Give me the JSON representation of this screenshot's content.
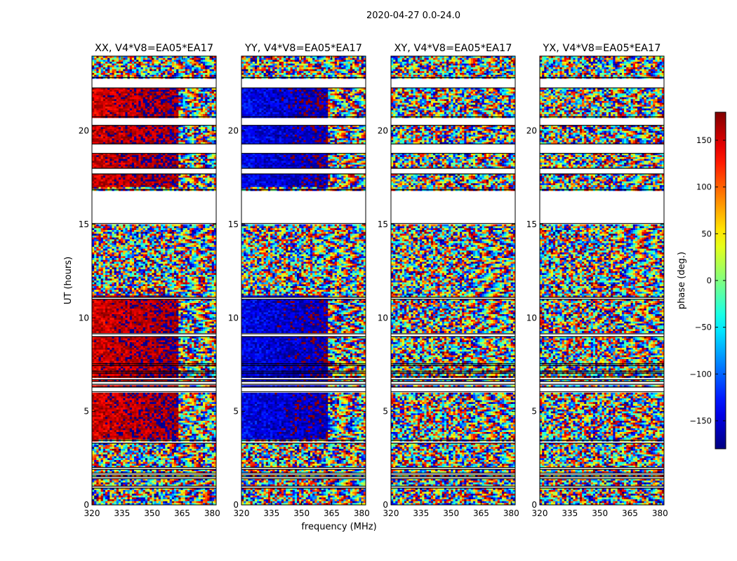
{
  "chart_data": {
    "type": "heatmap",
    "suptitle": "2020-04-27 0.0-24.0",
    "xlabel": "frequency (MHz)",
    "ylabel": "UT (hours)",
    "x_range": [
      320,
      382
    ],
    "y_range": [
      0,
      24
    ],
    "x_ticks": [
      320,
      335,
      350,
      365,
      380
    ],
    "y_ticks": [
      0,
      5,
      10,
      15,
      20
    ],
    "colormap": "jet",
    "colorbar": {
      "label": "phase (deg.)",
      "range": [
        -180,
        180
      ],
      "ticks": [
        150,
        100,
        50,
        0,
        -50,
        -100,
        -150
      ],
      "tick_labels": [
        "150",
        "100",
        "50",
        "0",
        "−50",
        "−100",
        "−150"
      ]
    },
    "flagged_ut_ranges": [
      [
        0.9,
        1.0
      ],
      [
        1.4,
        1.5
      ],
      [
        1.6,
        1.7
      ],
      [
        1.9,
        2.0
      ],
      [
        3.3,
        3.45
      ],
      [
        6.05,
        6.3
      ],
      [
        6.45,
        6.6
      ],
      [
        6.7,
        6.85
      ],
      [
        7.05,
        7.15
      ],
      [
        7.45,
        7.55
      ],
      [
        9.0,
        9.15
      ],
      [
        11.0,
        11.1
      ],
      [
        15.05,
        16.85
      ],
      [
        17.7,
        18.0
      ],
      [
        18.8,
        19.3
      ],
      [
        20.3,
        20.75
      ],
      [
        22.3,
        22.85
      ]
    ],
    "panels": [
      {
        "title": "XX, V4*V8=EA05*EA17",
        "coherent_phase_deg": 150
      },
      {
        "title": "YY, V4*V8=EA05*EA17",
        "coherent_phase_deg": -140
      },
      {
        "title": "XY, V4*V8=EA05*EA17",
        "coherent_phase_deg": null
      },
      {
        "title": "YX, V4*V8=EA05*EA17",
        "coherent_phase_deg": null
      }
    ]
  }
}
